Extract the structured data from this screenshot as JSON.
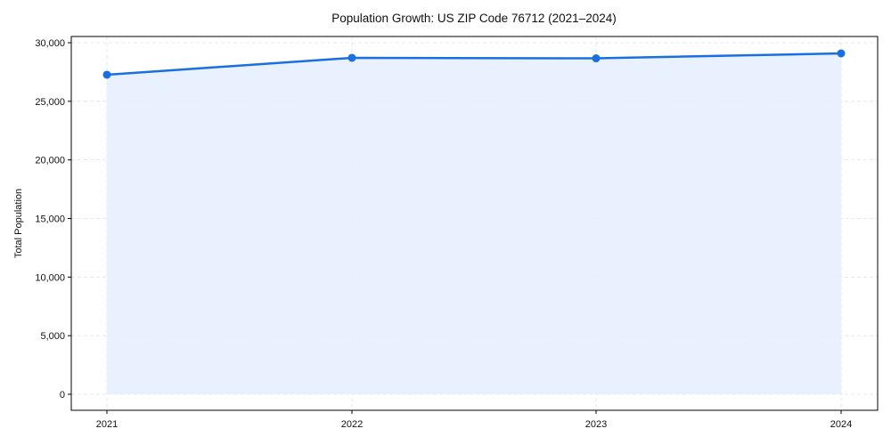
{
  "chart_data": {
    "type": "area",
    "title": "Population Growth: US ZIP Code 76712 (2021–2024)",
    "xlabel": "",
    "ylabel": "Total Population",
    "categories": [
      "2021",
      "2022",
      "2023",
      "2024"
    ],
    "series": [
      {
        "name": "Total Population",
        "values": [
          27270,
          28710,
          28670,
          29090
        ]
      }
    ],
    "ylim": [
      -1400,
      31000
    ],
    "yticks": [
      0,
      5000,
      10000,
      15000,
      20000,
      25000,
      30000
    ],
    "ytick_labels": [
      "0",
      "5,000",
      "10,000",
      "15,000",
      "20,000",
      "25,000",
      "30,000"
    ],
    "grid": true,
    "legend": "none",
    "colors": {
      "line": "#1a6fe0",
      "fill": "#e5effd",
      "grid": "#dde3ea",
      "axis": "#000000"
    }
  }
}
